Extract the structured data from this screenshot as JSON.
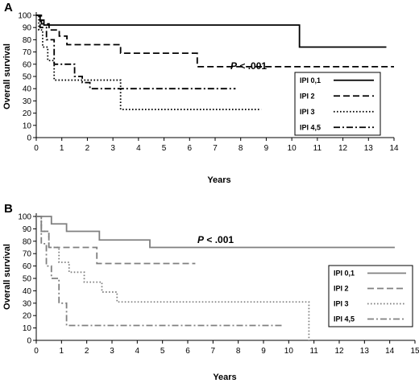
{
  "chart_data": [
    {
      "type": "line",
      "panel_label": "A",
      "annotation": "P < .001",
      "xlabel": "Years",
      "ylabel": "Overall survival",
      "xlim": [
        0,
        14
      ],
      "ylim": [
        0,
        100
      ],
      "x_ticks": [
        "0",
        "1",
        "2",
        "3",
        "4",
        "5",
        "6",
        "7",
        "8",
        "9",
        "10",
        "11",
        "12",
        "13",
        "14"
      ],
      "y_ticks": [
        "0",
        "10",
        "20",
        "30",
        "40",
        "50",
        "60",
        "70",
        "80",
        "90",
        "100"
      ],
      "grid": false,
      "legend_position": "right",
      "color": "#000000",
      "series": [
        {
          "name": "IPI 0,1",
          "style": "solid",
          "x": [
            0,
            0.15,
            0.3,
            10.3,
            10.3,
            13.7
          ],
          "y": [
            100,
            96,
            92,
            92,
            74,
            74
          ]
        },
        {
          "name": "IPI 2",
          "style": "dashed",
          "x": [
            0,
            0.2,
            0.5,
            0.9,
            1.2,
            3.3,
            6.3,
            14
          ],
          "y": [
            100,
            93,
            88,
            83,
            76,
            69,
            58,
            58
          ]
        },
        {
          "name": "IPI 3",
          "style": "dotted",
          "x": [
            0,
            0.1,
            0.25,
            0.45,
            0.7,
            2.0,
            3.3,
            8.8
          ],
          "y": [
            100,
            88,
            74,
            63,
            47,
            47,
            23,
            23
          ]
        },
        {
          "name": "IPI 4,5",
          "style": "dash-dot",
          "x": [
            0,
            0.15,
            0.4,
            0.7,
            1.5,
            1.8,
            2.1,
            7.8
          ],
          "y": [
            100,
            90,
            80,
            60,
            50,
            45,
            40,
            40
          ]
        }
      ]
    },
    {
      "type": "line",
      "panel_label": "B",
      "annotation": "P < .001",
      "xlabel": "Years",
      "ylabel": "Overall survival",
      "xlim": [
        0,
        15
      ],
      "ylim": [
        0,
        100
      ],
      "x_ticks": [
        "0",
        "1",
        "2",
        "3",
        "4",
        "5",
        "6",
        "7",
        "8",
        "9",
        "10",
        "11",
        "12",
        "13",
        "14",
        "15"
      ],
      "y_ticks": [
        "0",
        "10",
        "20",
        "30",
        "40",
        "50",
        "60",
        "70",
        "80",
        "90",
        "100"
      ],
      "grid": false,
      "legend_position": "right",
      "color": "#808080",
      "series": [
        {
          "name": "IPI 0,1",
          "style": "solid",
          "x": [
            0,
            0.6,
            1.2,
            2.5,
            4.5,
            14.2
          ],
          "y": [
            100,
            94,
            88,
            81,
            75,
            75
          ]
        },
        {
          "name": "IPI 2",
          "style": "dashed",
          "x": [
            0,
            0.2,
            0.5,
            2.4,
            6.3
          ],
          "y": [
            100,
            88,
            75,
            62,
            62
          ]
        },
        {
          "name": "IPI 3",
          "style": "dotted",
          "x": [
            0,
            0.2,
            0.5,
            0.9,
            1.3,
            1.9,
            2.6,
            3.2,
            10.8,
            10.8
          ],
          "y": [
            100,
            88,
            75,
            63,
            55,
            47,
            39,
            31,
            31,
            0
          ]
        },
        {
          "name": "IPI 4,5",
          "style": "dash-dot",
          "x": [
            0,
            0.2,
            0.4,
            0.6,
            0.9,
            1.2,
            9.8
          ],
          "y": [
            100,
            78,
            60,
            50,
            30,
            12,
            12
          ]
        }
      ]
    }
  ]
}
